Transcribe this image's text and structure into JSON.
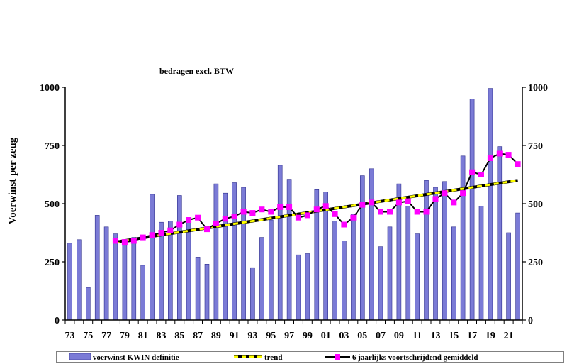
{
  "chart_data": {
    "type": "bar",
    "note": "bedragen excl. BTW",
    "ylabel": "Voerwinst per zeug",
    "xlabel": "",
    "ylim": [
      0,
      1000
    ],
    "yticks": [
      0,
      250,
      500,
      750,
      1000
    ],
    "grid": false,
    "legend_position": "bottom",
    "x_tick_labels": [
      "73",
      "75",
      "77",
      "79",
      "81",
      "83",
      "85",
      "87",
      "89",
      "91",
      "93",
      "95",
      "97",
      "99",
      "01",
      "03",
      "05",
      "07",
      "09",
      "11",
      "13",
      "15",
      "17",
      "19",
      "21"
    ],
    "categories": [
      "1973",
      "1974",
      "1975",
      "1976",
      "1977",
      "1978",
      "1979",
      "1980",
      "1981",
      "1982",
      "1983",
      "1984",
      "1985",
      "1986",
      "1987",
      "1988",
      "1989",
      "1990",
      "1991",
      "1992",
      "1993",
      "1994",
      "1995",
      "1996",
      "1997",
      "1998",
      "1999",
      "2000",
      "2001",
      "2002",
      "2003",
      "2004",
      "2005",
      "2006",
      "2007",
      "2008",
      "2009",
      "2010",
      "2011",
      "2012",
      "2013",
      "2014",
      "2015",
      "2016",
      "2017",
      "2018",
      "2019",
      "2020",
      "2021",
      "2022"
    ],
    "series": [
      {
        "name": "voerwinst KWIN definitie",
        "kind": "bar",
        "color": "#7b7bd6",
        "values": [
          330,
          345,
          140,
          450,
          400,
          370,
          330,
          355,
          235,
          540,
          420,
          425,
          535,
          420,
          270,
          240,
          585,
          545,
          590,
          570,
          225,
          355,
          430,
          665,
          605,
          280,
          285,
          560,
          550,
          425,
          340,
          455,
          620,
          650,
          315,
          400,
          585,
          490,
          370,
          600,
          570,
          595,
          400,
          705,
          950,
          490,
          995,
          745,
          375,
          460
        ]
      },
      {
        "name": "trend",
        "kind": "trend",
        "color": "#ffff00",
        "from": [
          1978,
          335
        ],
        "to": [
          2022,
          600
        ]
      },
      {
        "name": "6 jaarlijks voortschrijdend gemiddeld",
        "kind": "line",
        "color": "#ff00ff",
        "x": [
          1978,
          1979,
          1980,
          1981,
          1982,
          1983,
          1984,
          1985,
          1986,
          1987,
          1988,
          1989,
          1990,
          1991,
          1992,
          1993,
          1994,
          1995,
          1996,
          1997,
          1998,
          1999,
          2000,
          2001,
          2002,
          2003,
          2004,
          2005,
          2006,
          2007,
          2008,
          2009,
          2010,
          2011,
          2012,
          2013,
          2014,
          2015,
          2016,
          2017,
          2018,
          2019,
          2020,
          2021,
          2022
        ],
        "values": [
          340,
          335,
          340,
          355,
          365,
          375,
          385,
          410,
          430,
          440,
          390,
          415,
          435,
          445,
          465,
          460,
          475,
          465,
          485,
          485,
          440,
          450,
          475,
          490,
          455,
          410,
          440,
          495,
          505,
          465,
          465,
          505,
          510,
          465,
          465,
          520,
          545,
          505,
          545,
          635,
          625,
          695,
          715,
          710,
          670
        ]
      }
    ]
  }
}
